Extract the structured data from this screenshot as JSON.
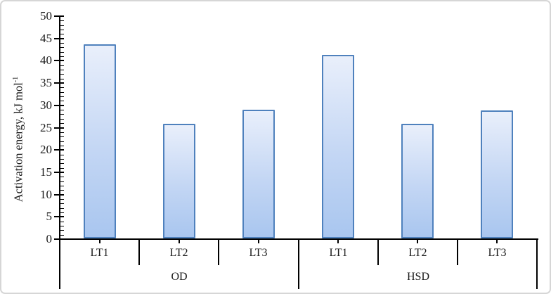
{
  "frame": {
    "background": "#ffffff",
    "border_color": "#d6d6d6"
  },
  "chart_data": {
    "type": "bar",
    "title": "",
    "ylabel": "Activation energy, kJ mol⁻¹",
    "ylabel_base": "Activation energy, kJ mol",
    "ylabel_sup": "-1",
    "xlabel": "",
    "ylim": [
      0,
      50
    ],
    "ytick_step": 5,
    "minor_tick_step": 1,
    "ytick_labels": [
      "0",
      "5",
      "10",
      "15",
      "20",
      "25",
      "30",
      "35",
      "40",
      "45",
      "50"
    ],
    "grid": "off",
    "legend": "none",
    "groups": [
      {
        "label": "OD",
        "categories": [
          "LT1",
          "LT2",
          "LT3"
        ],
        "values": [
          43.7,
          25.9,
          29.1
        ]
      },
      {
        "label": "HSD",
        "categories": [
          "LT1",
          "LT2",
          "LT3"
        ],
        "values": [
          41.4,
          25.9,
          28.9
        ]
      }
    ],
    "series": [
      {
        "name": "Activation energy",
        "values": [
          43.7,
          25.9,
          29.1,
          41.4,
          25.9,
          28.9
        ]
      }
    ],
    "colors": {
      "bar_fill_top": "#e9effb",
      "bar_fill_mid": "#c3d6f4",
      "bar_fill_bottom": "#a9c6ef",
      "bar_border": "#4f81bd",
      "axis": "#000000",
      "text": "#1a1a1a"
    }
  }
}
